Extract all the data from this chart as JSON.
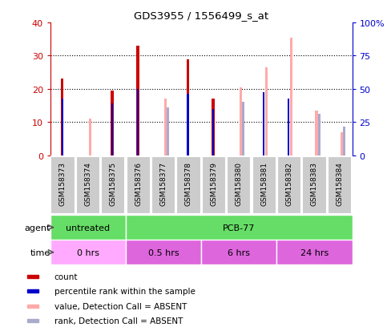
{
  "title": "GDS3955 / 1556499_s_at",
  "samples": [
    "GSM158373",
    "GSM158374",
    "GSM158375",
    "GSM158376",
    "GSM158377",
    "GSM158378",
    "GSM158379",
    "GSM158380",
    "GSM158381",
    "GSM158382",
    "GSM158383",
    "GSM158384"
  ],
  "count": [
    23,
    0,
    19.5,
    33,
    0,
    29,
    17,
    0,
    0,
    0,
    0,
    0
  ],
  "percentile_rank": [
    17,
    0,
    15.5,
    20,
    0,
    18.5,
    14,
    0,
    19,
    17,
    0,
    0
  ],
  "value_absent": [
    0,
    11,
    0,
    0,
    17,
    0,
    0,
    20.5,
    26.5,
    35.5,
    13.5,
    7
  ],
  "rank_absent": [
    0,
    0,
    0,
    0,
    14.5,
    0,
    0,
    16,
    0,
    0,
    12.5,
    8.5
  ],
  "color_count": "#cc0000",
  "color_rank": "#0000cc",
  "color_value_absent": "#ffaaaa",
  "color_rank_absent": "#aaaacc",
  "left_ylim": [
    0,
    40
  ],
  "left_yticks": [
    0,
    10,
    20,
    30,
    40
  ],
  "left_yticklabels": [
    "0",
    "10",
    "20",
    "30",
    "40"
  ],
  "right_yticklabels": [
    "0",
    "25",
    "50",
    "75",
    "100%"
  ],
  "axis_color_left": "#cc0000",
  "axis_color_right": "#0000cc",
  "agent_untreated_label": "untreated",
  "agent_pcb_label": "PCB-77",
  "agent_color": "#66dd66",
  "time_labels": [
    "0 hrs",
    "0.5 hrs",
    "6 hrs",
    "24 hrs"
  ],
  "time_color_light": "#ffaaff",
  "time_color_dark": "#dd66dd",
  "legend_items": [
    {
      "color": "#cc0000",
      "label": "count"
    },
    {
      "color": "#0000cc",
      "label": "percentile rank within the sample"
    },
    {
      "color": "#ffaaaa",
      "label": "value, Detection Call = ABSENT"
    },
    {
      "color": "#aaaacc",
      "label": "rank, Detection Call = ABSENT"
    }
  ]
}
